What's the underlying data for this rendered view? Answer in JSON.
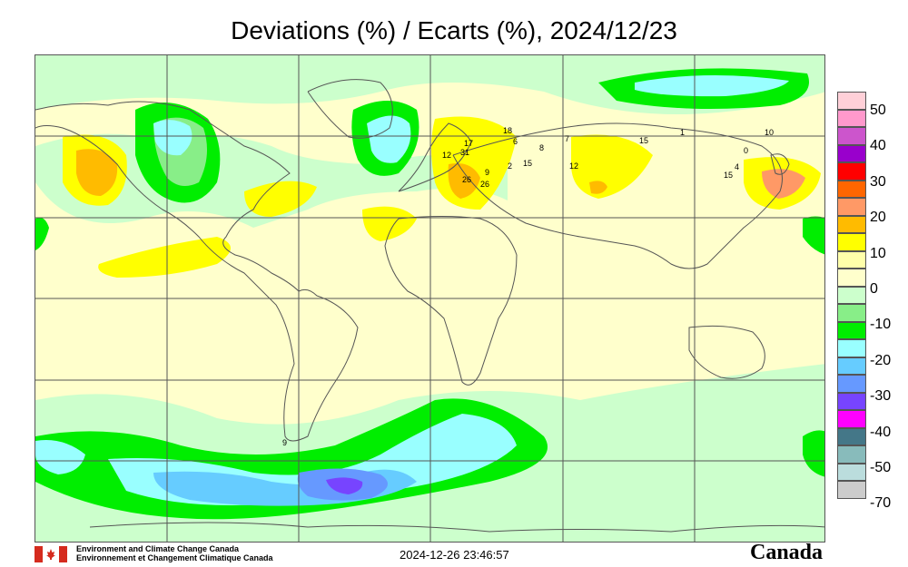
{
  "title": "Deviations (%) / Ecarts (%), 2024/12/23",
  "legend": {
    "labels": [
      "50",
      "40",
      "30",
      "20",
      "10",
      "0",
      "-10",
      "-20",
      "-30",
      "-40",
      "-50",
      "-70"
    ],
    "colors": [
      "#ffd0d8",
      "#ff99cc",
      "#cc55cc",
      "#9900cc",
      "#ff0000",
      "#ff6600",
      "#ff9966",
      "#ffbb00",
      "#ffff00",
      "#ffffaa",
      "#ffffcc",
      "#ccffcc",
      "#88ee88",
      "#00ee00",
      "#99ffff",
      "#66ccff",
      "#6699ff",
      "#7744ff",
      "#ff00ff",
      "#447788",
      "#88bbbb",
      "#bbdddd",
      "#cccccc"
    ]
  },
  "stations": [
    "17",
    "12",
    "31",
    "26",
    "26",
    "18",
    "6",
    "8",
    "7",
    "15",
    "1",
    "0",
    "10",
    "15",
    "4",
    "12",
    "15",
    "2",
    "9",
    "9"
  ],
  "footer": {
    "org_en": "Environment and Climate Change Canada",
    "org_fr": "Environnement et Changement Climatique Canada",
    "timestamp": "2024-12-26 23:46:57",
    "wordmark": "Canada"
  }
}
